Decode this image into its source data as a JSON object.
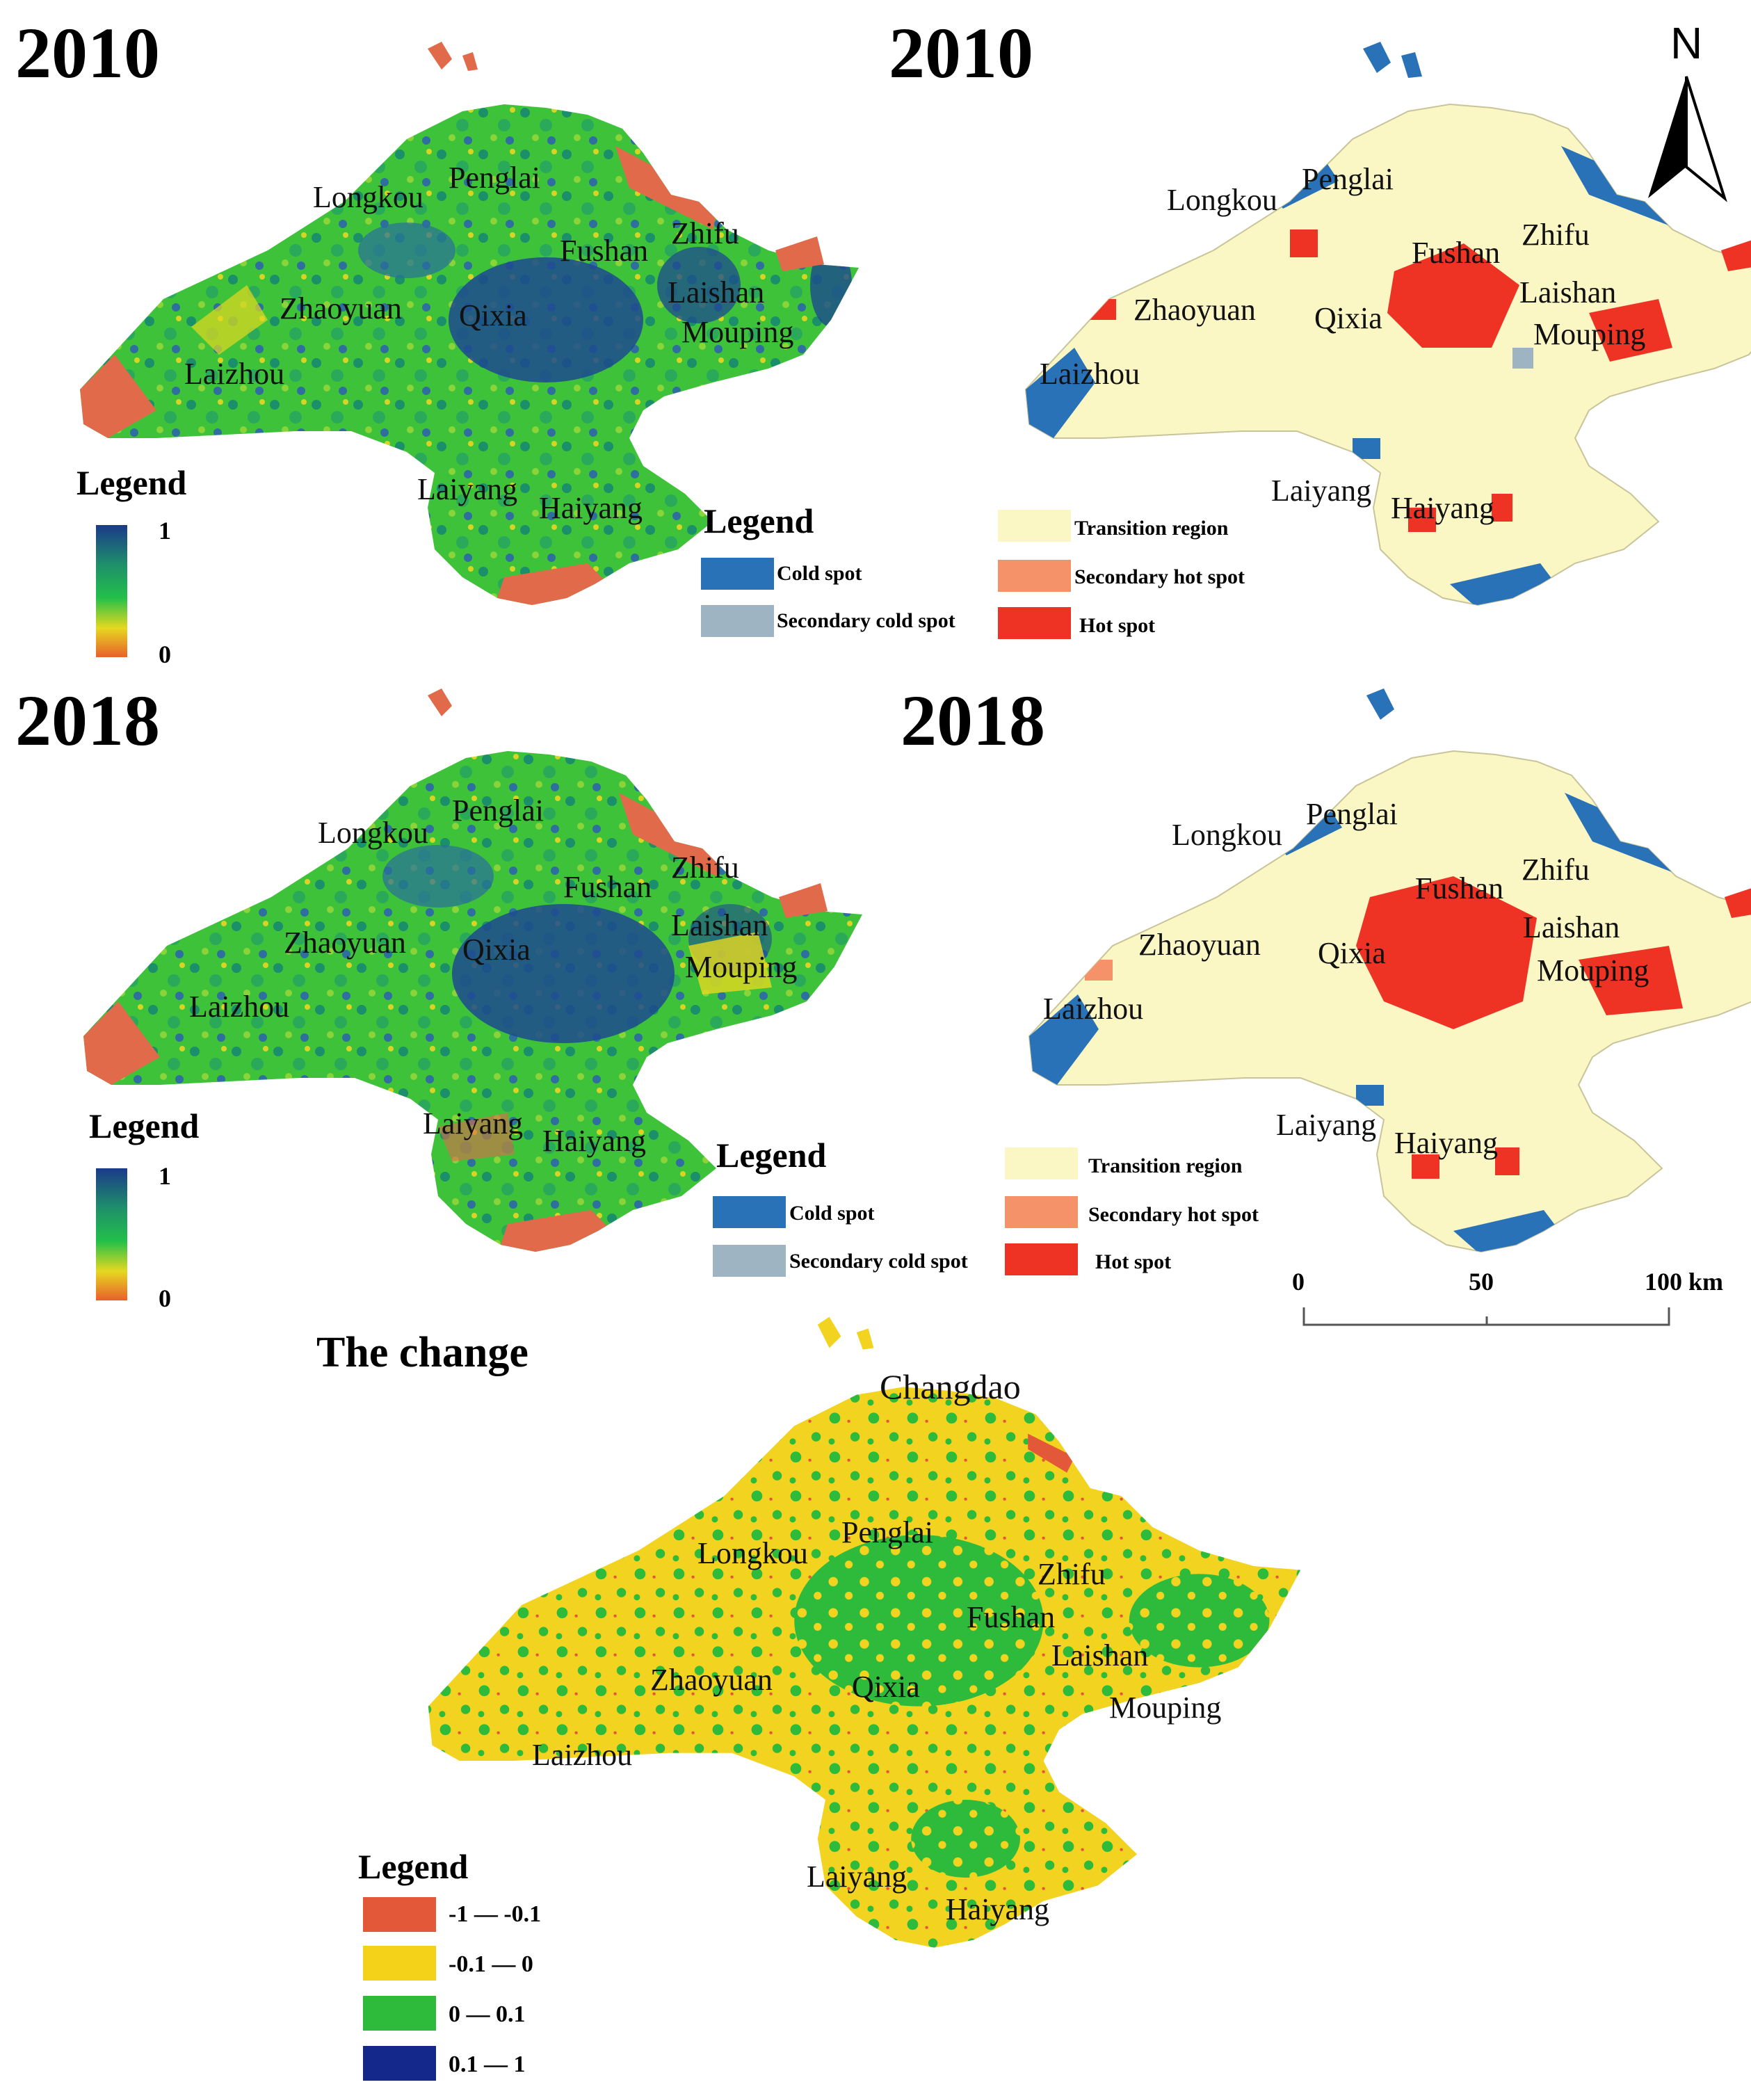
{
  "panels": {
    "ndvi_2010": {
      "year": "2010"
    },
    "hotspot_2010": {
      "year": "2010"
    },
    "ndvi_2018": {
      "year": "2018"
    },
    "hotspot_2018": {
      "year": "2018"
    },
    "change": {
      "title": "The change",
      "island": "Changdao"
    }
  },
  "places": [
    "Longkou",
    "Penglai",
    "Fushan",
    "Zhifu",
    "Zhaoyuan",
    "Qixia",
    "Laishan",
    "Mouping",
    "Laizhou",
    "Laiyang",
    "Haiyang"
  ],
  "gradient_legend": {
    "title": "Legend",
    "max": "1",
    "min": "0",
    "colors": [
      "#1a3a8a",
      "#1f8f6a",
      "#22c04a",
      "#e6d820",
      "#e8602a"
    ]
  },
  "hotspot_legend": {
    "title": "Legend",
    "items": [
      {
        "label": "Cold spot",
        "color": "#2a72b8"
      },
      {
        "label": "Secondary cold spot",
        "color": "#9fb4c2"
      },
      {
        "label": "Transition region",
        "color": "#fbf7c4"
      },
      {
        "label": "Secondary hot spot",
        "color": "#f5926a"
      },
      {
        "label": "Hot spot",
        "color": "#ee3324"
      }
    ]
  },
  "change_legend": {
    "title": "Legend",
    "items": [
      {
        "label": "-1 — -0.1",
        "color": "#e4583a"
      },
      {
        "label": "-0.1 — 0",
        "color": "#f5d21a"
      },
      {
        "label": "0 — 0.1",
        "color": "#2ebb3c"
      },
      {
        "label": "0.1 — 1",
        "color": "#13288a"
      }
    ]
  },
  "scale_bar": {
    "ticks": [
      "0",
      "50",
      "100 km"
    ]
  },
  "north_arrow": {
    "label": "N"
  },
  "colors": {
    "land_green": "#3ec23a",
    "dark_blue": "#1d4a8f",
    "coast_red": "#e06a4a",
    "change_yellow": "#f2d31f",
    "transition": "#fbf7c4"
  }
}
